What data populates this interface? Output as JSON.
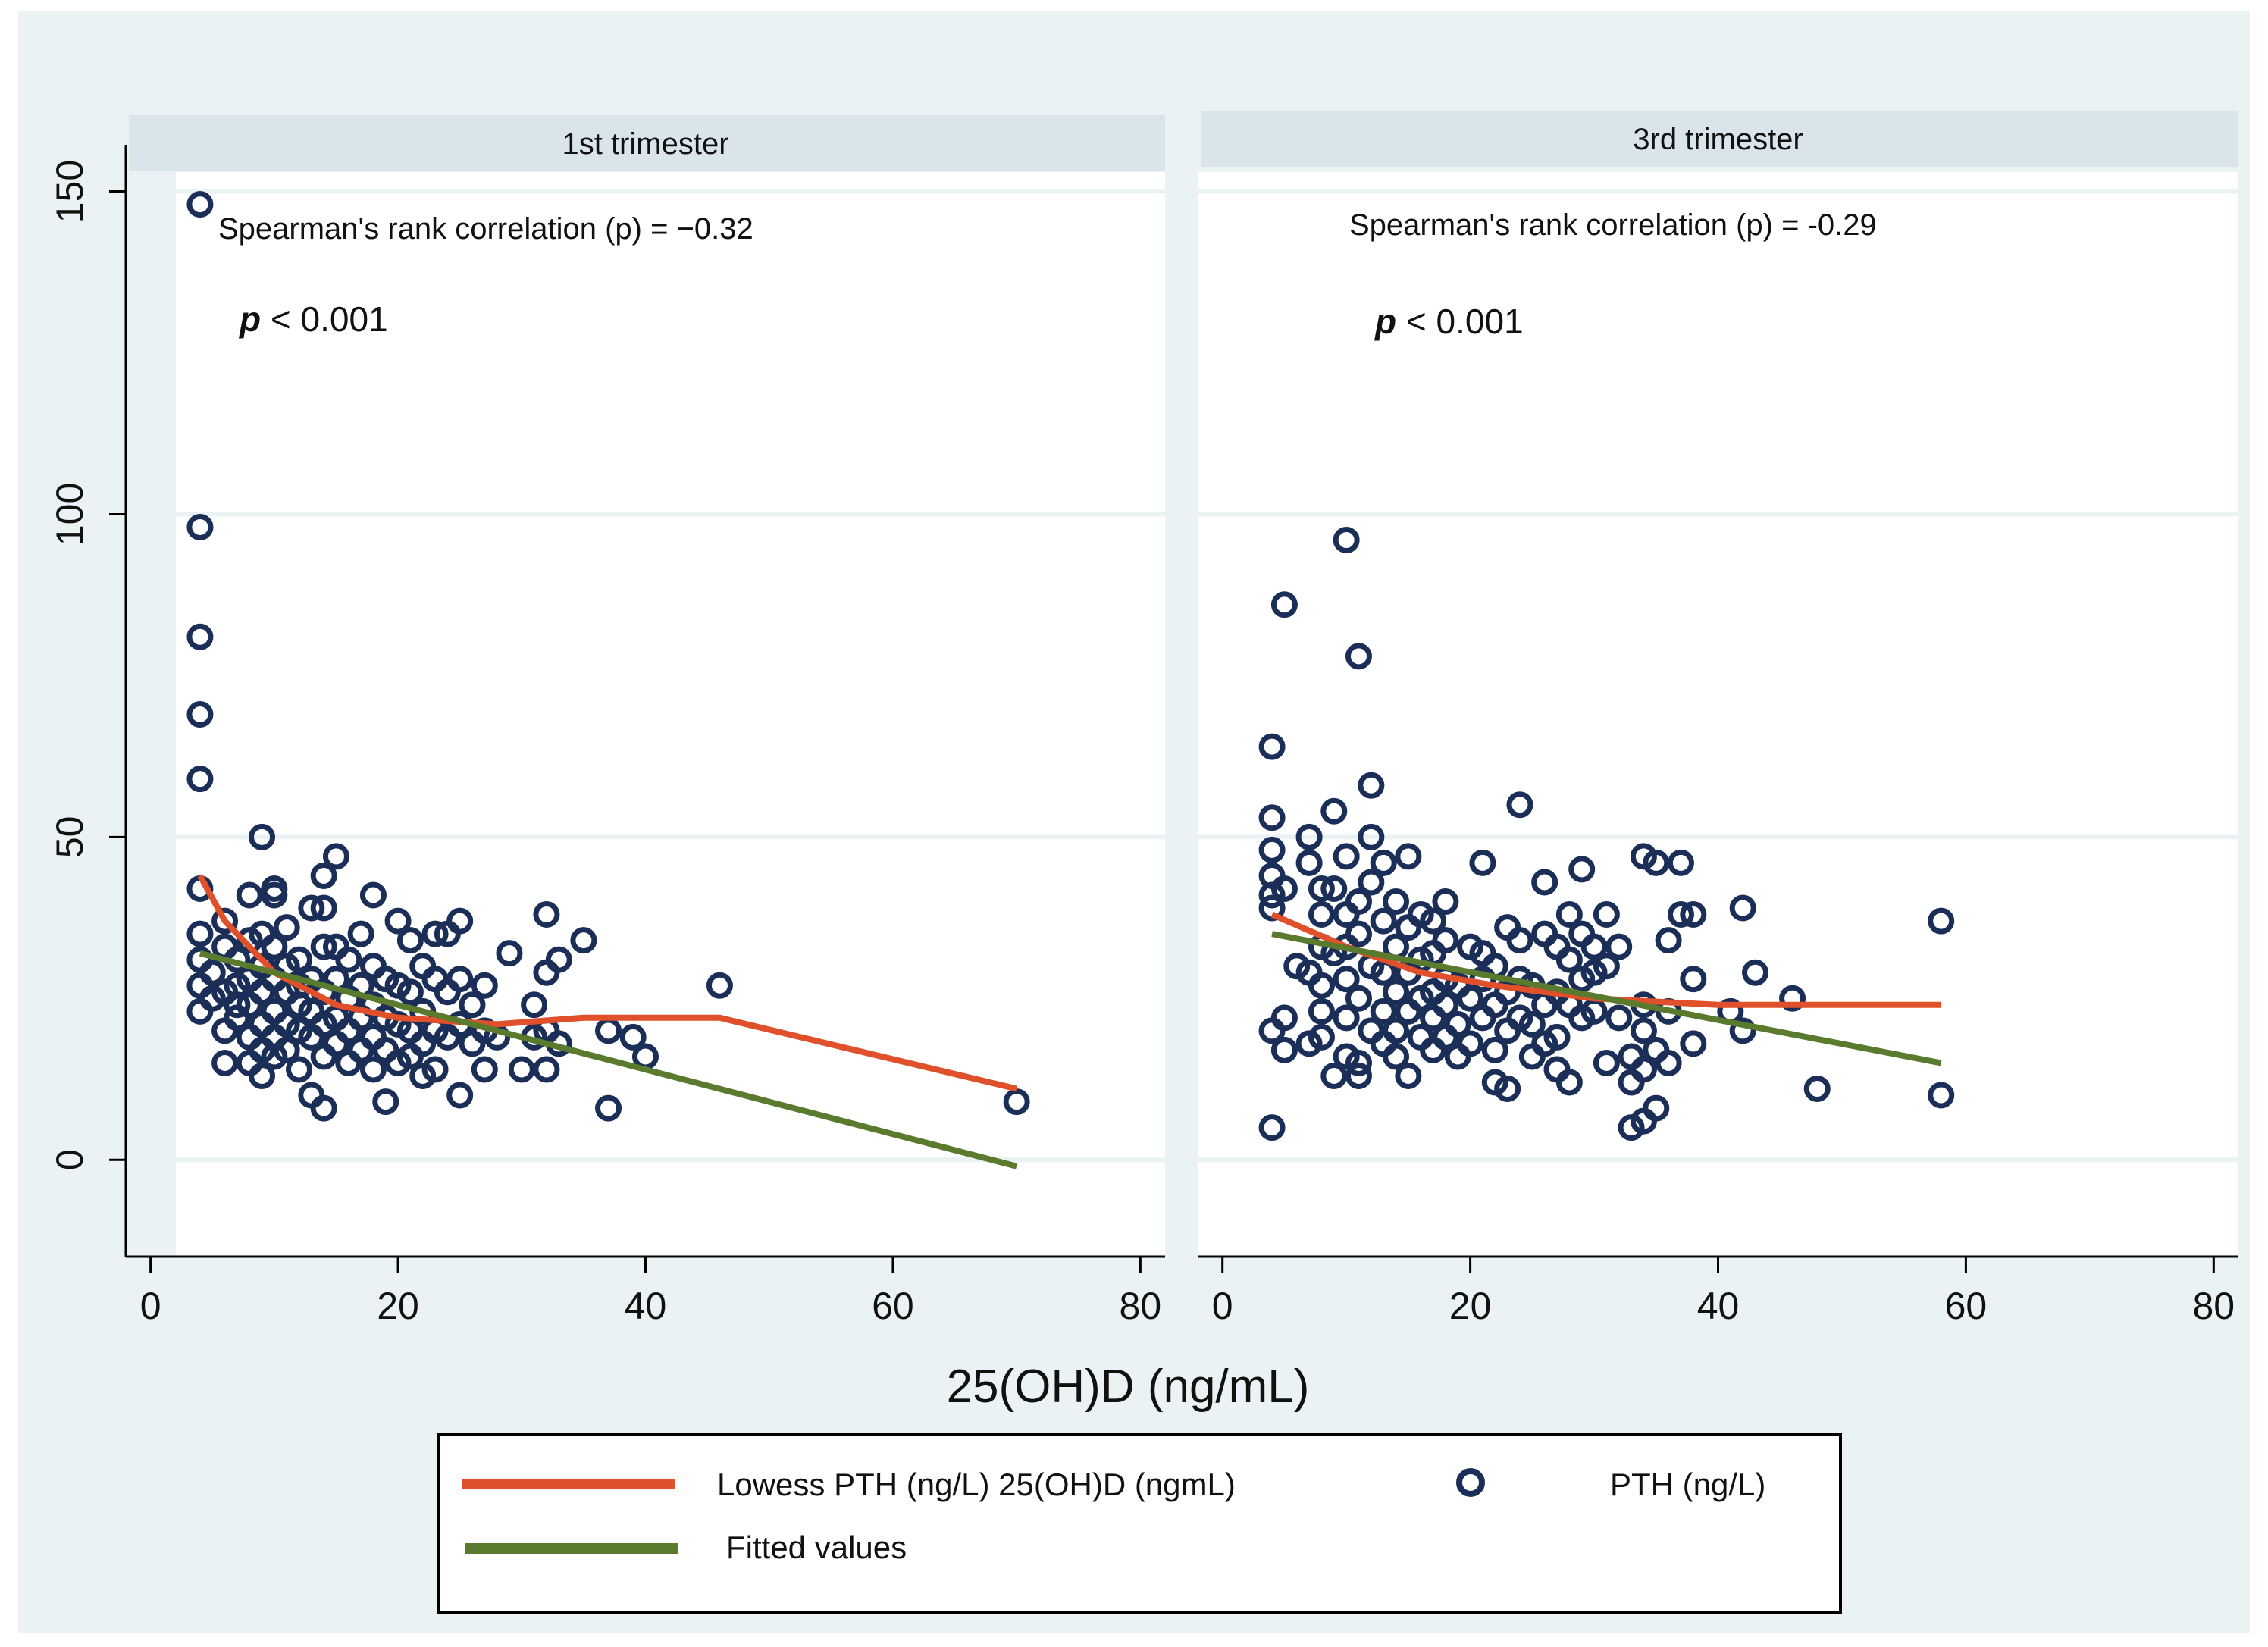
{
  "colors": {
    "outer_bg": "#eaf2f3",
    "plot_bg": "#ffffff",
    "strip_bg": "#d9e5eb",
    "gridline": "#eaf2f3",
    "marker": "#1a2e57",
    "lowess": "#e0502a",
    "fitted": "#5a7a2e",
    "axis": "#000000",
    "text": "#111111"
  },
  "legend": {
    "lowess_label": "Lowess PTH (ng/L) 25(OH)D (ngmL)",
    "fitted_label": "Fitted values",
    "marker_label": "PTH (ng/L)"
  },
  "chart_data": {
    "type": "scatter",
    "xlabel": "25(OH)D (ng/mL)",
    "ylabel": "",
    "xlim": [
      -2,
      82
    ],
    "ylim": [
      -15,
      153
    ],
    "x_ticks": [
      "0",
      "20",
      "40",
      "60",
      "80"
    ],
    "y_ticks": [
      "0",
      "50",
      "100",
      "150"
    ],
    "y_tick_values": [
      0,
      50,
      100,
      150
    ],
    "x_tick_values": [
      0,
      20,
      40,
      60,
      80
    ],
    "panels": [
      {
        "title": "1st trimester",
        "annotation": "Spearman's rank correlation (p) = −0.32",
        "p_label": "p",
        "p_value": "< 0.001",
        "points": [
          [
            4,
            148
          ],
          [
            4,
            98
          ],
          [
            4,
            81
          ],
          [
            4,
            69
          ],
          [
            4,
            59
          ],
          [
            4,
            42
          ],
          [
            4,
            35
          ],
          [
            4,
            31
          ],
          [
            4,
            27
          ],
          [
            4,
            23
          ],
          [
            5,
            29
          ],
          [
            5,
            25
          ],
          [
            6,
            37
          ],
          [
            6,
            33
          ],
          [
            6,
            26
          ],
          [
            6,
            20
          ],
          [
            6,
            15
          ],
          [
            7,
            31
          ],
          [
            7,
            27
          ],
          [
            7,
            24
          ],
          [
            7,
            22
          ],
          [
            8,
            41
          ],
          [
            8,
            34
          ],
          [
            8,
            28
          ],
          [
            8,
            24
          ],
          [
            8,
            19
          ],
          [
            8,
            15
          ],
          [
            9,
            50
          ],
          [
            9,
            35
          ],
          [
            9,
            30
          ],
          [
            9,
            26
          ],
          [
            9,
            21
          ],
          [
            9,
            17
          ],
          [
            9,
            13
          ],
          [
            10,
            42
          ],
          [
            10,
            41
          ],
          [
            10,
            33
          ],
          [
            10,
            28
          ],
          [
            10,
            23
          ],
          [
            10,
            19
          ],
          [
            10,
            16
          ],
          [
            11,
            36
          ],
          [
            11,
            30
          ],
          [
            11,
            26
          ],
          [
            11,
            21
          ],
          [
            11,
            17
          ],
          [
            12,
            31
          ],
          [
            12,
            27
          ],
          [
            12,
            24
          ],
          [
            12,
            20
          ],
          [
            12,
            14
          ],
          [
            13,
            39
          ],
          [
            13,
            28
          ],
          [
            13,
            23
          ],
          [
            13,
            19
          ],
          [
            13,
            10
          ],
          [
            14,
            44
          ],
          [
            14,
            39
          ],
          [
            14,
            33
          ],
          [
            14,
            26
          ],
          [
            14,
            21
          ],
          [
            14,
            16
          ],
          [
            14,
            8
          ],
          [
            15,
            47
          ],
          [
            15,
            33
          ],
          [
            15,
            28
          ],
          [
            15,
            22
          ],
          [
            15,
            18
          ],
          [
            16,
            31
          ],
          [
            16,
            25
          ],
          [
            16,
            20
          ],
          [
            16,
            15
          ],
          [
            17,
            35
          ],
          [
            17,
            27
          ],
          [
            17,
            22
          ],
          [
            17,
            17
          ],
          [
            18,
            41
          ],
          [
            18,
            30
          ],
          [
            18,
            24
          ],
          [
            18,
            19
          ],
          [
            18,
            14
          ],
          [
            19,
            28
          ],
          [
            19,
            22
          ],
          [
            19,
            17
          ],
          [
            19,
            9
          ],
          [
            20,
            37
          ],
          [
            20,
            27
          ],
          [
            20,
            21
          ],
          [
            20,
            15
          ],
          [
            21,
            34
          ],
          [
            21,
            26
          ],
          [
            21,
            20
          ],
          [
            21,
            16
          ],
          [
            22,
            30
          ],
          [
            22,
            23
          ],
          [
            22,
            18
          ],
          [
            22,
            13
          ],
          [
            23,
            35
          ],
          [
            23,
            28
          ],
          [
            23,
            20
          ],
          [
            23,
            14
          ],
          [
            24,
            35
          ],
          [
            24,
            26
          ],
          [
            24,
            19
          ],
          [
            25,
            37
          ],
          [
            25,
            28
          ],
          [
            25,
            21
          ],
          [
            25,
            10
          ],
          [
            26,
            24
          ],
          [
            26,
            18
          ],
          [
            27,
            27
          ],
          [
            27,
            20
          ],
          [
            27,
            14
          ],
          [
            28,
            19
          ],
          [
            29,
            32
          ],
          [
            30,
            14
          ],
          [
            31,
            24
          ],
          [
            31,
            19
          ],
          [
            32,
            38
          ],
          [
            32,
            29
          ],
          [
            32,
            20
          ],
          [
            32,
            14
          ],
          [
            33,
            31
          ],
          [
            33,
            18
          ],
          [
            35,
            34
          ],
          [
            37,
            20
          ],
          [
            37,
            8
          ],
          [
            39,
            19
          ],
          [
            40,
            16
          ],
          [
            46,
            27
          ],
          [
            70,
            9
          ]
        ],
        "lowess": [
          [
            4,
            44
          ],
          [
            6,
            37
          ],
          [
            10,
            29
          ],
          [
            15,
            24
          ],
          [
            20,
            22
          ],
          [
            28,
            21
          ],
          [
            35,
            22
          ],
          [
            46,
            22
          ],
          [
            70,
            11
          ]
        ],
        "fitted": [
          [
            4,
            32
          ],
          [
            70,
            -1
          ]
        ]
      },
      {
        "title": "3rd trimester",
        "annotation": "Spearman's rank correlation (p) = -0.29",
        "p_label": "p",
        "p_value": "< 0.001",
        "points": [
          [
            4,
            64
          ],
          [
            4,
            53
          ],
          [
            4,
            48
          ],
          [
            4,
            44
          ],
          [
            4,
            41
          ],
          [
            4,
            39
          ],
          [
            4,
            20
          ],
          [
            4,
            5
          ],
          [
            5,
            86
          ],
          [
            5,
            42
          ],
          [
            5,
            17
          ],
          [
            5,
            22
          ],
          [
            6,
            30
          ],
          [
            7,
            50
          ],
          [
            7,
            46
          ],
          [
            7,
            29
          ],
          [
            7,
            18
          ],
          [
            8,
            42
          ],
          [
            8,
            38
          ],
          [
            8,
            33
          ],
          [
            8,
            27
          ],
          [
            8,
            23
          ],
          [
            8,
            19
          ],
          [
            9,
            54
          ],
          [
            9,
            42
          ],
          [
            9,
            32
          ],
          [
            9,
            13
          ],
          [
            10,
            96
          ],
          [
            10,
            47
          ],
          [
            10,
            38
          ],
          [
            10,
            33
          ],
          [
            10,
            28
          ],
          [
            10,
            22
          ],
          [
            10,
            16
          ],
          [
            11,
            78
          ],
          [
            11,
            40
          ],
          [
            11,
            35
          ],
          [
            11,
            25
          ],
          [
            11,
            15
          ],
          [
            11,
            13
          ],
          [
            12,
            58
          ],
          [
            12,
            50
          ],
          [
            12,
            43
          ],
          [
            12,
            30
          ],
          [
            12,
            20
          ],
          [
            13,
            46
          ],
          [
            13,
            37
          ],
          [
            13,
            29
          ],
          [
            13,
            23
          ],
          [
            13,
            18
          ],
          [
            14,
            40
          ],
          [
            14,
            33
          ],
          [
            14,
            26
          ],
          [
            14,
            20
          ],
          [
            14,
            16
          ],
          [
            15,
            47
          ],
          [
            15,
            36
          ],
          [
            15,
            29
          ],
          [
            15,
            23
          ],
          [
            15,
            13
          ],
          [
            16,
            38
          ],
          [
            16,
            31
          ],
          [
            16,
            25
          ],
          [
            16,
            19
          ],
          [
            17,
            37
          ],
          [
            17,
            32
          ],
          [
            17,
            26
          ],
          [
            17,
            22
          ],
          [
            17,
            17
          ],
          [
            18,
            40
          ],
          [
            18,
            34
          ],
          [
            18,
            28
          ],
          [
            18,
            24
          ],
          [
            18,
            19
          ],
          [
            19,
            27
          ],
          [
            19,
            21
          ],
          [
            19,
            16
          ],
          [
            20,
            33
          ],
          [
            20,
            25
          ],
          [
            20,
            18
          ],
          [
            21,
            46
          ],
          [
            21,
            32
          ],
          [
            21,
            28
          ],
          [
            21,
            22
          ],
          [
            22,
            30
          ],
          [
            22,
            24
          ],
          [
            22,
            17
          ],
          [
            22,
            12
          ],
          [
            23,
            36
          ],
          [
            23,
            26
          ],
          [
            23,
            20
          ],
          [
            23,
            11
          ],
          [
            24,
            55
          ],
          [
            24,
            34
          ],
          [
            24,
            28
          ],
          [
            24,
            22
          ],
          [
            25,
            27
          ],
          [
            25,
            21
          ],
          [
            25,
            16
          ],
          [
            26,
            43
          ],
          [
            26,
            35
          ],
          [
            26,
            24
          ],
          [
            26,
            18
          ],
          [
            27,
            33
          ],
          [
            27,
            26
          ],
          [
            27,
            19
          ],
          [
            27,
            14
          ],
          [
            28,
            38
          ],
          [
            28,
            31
          ],
          [
            28,
            24
          ],
          [
            28,
            12
          ],
          [
            29,
            45
          ],
          [
            29,
            35
          ],
          [
            29,
            28
          ],
          [
            29,
            22
          ],
          [
            30,
            33
          ],
          [
            30,
            29
          ],
          [
            30,
            23
          ],
          [
            31,
            38
          ],
          [
            31,
            30
          ],
          [
            31,
            15
          ],
          [
            32,
            33
          ],
          [
            32,
            22
          ],
          [
            33,
            5
          ],
          [
            33,
            12
          ],
          [
            33,
            16
          ],
          [
            34,
            47
          ],
          [
            34,
            24
          ],
          [
            34,
            20
          ],
          [
            34,
            14
          ],
          [
            34,
            6
          ],
          [
            35,
            46
          ],
          [
            35,
            17
          ],
          [
            35,
            8
          ],
          [
            36,
            23
          ],
          [
            36,
            34
          ],
          [
            36,
            15
          ],
          [
            37,
            46
          ],
          [
            37,
            38
          ],
          [
            38,
            38
          ],
          [
            38,
            28
          ],
          [
            38,
            18
          ],
          [
            41,
            23
          ],
          [
            42,
            39
          ],
          [
            42,
            20
          ],
          [
            43,
            29
          ],
          [
            46,
            25
          ],
          [
            48,
            11
          ],
          [
            58,
            37
          ],
          [
            58,
            10
          ]
        ],
        "lowess": [
          [
            4,
            38
          ],
          [
            10,
            33
          ],
          [
            16,
            29
          ],
          [
            22,
            27
          ],
          [
            30,
            25
          ],
          [
            40,
            24
          ],
          [
            58,
            24
          ]
        ],
        "fitted": [
          [
            4,
            35
          ],
          [
            58,
            15
          ]
        ]
      }
    ]
  }
}
